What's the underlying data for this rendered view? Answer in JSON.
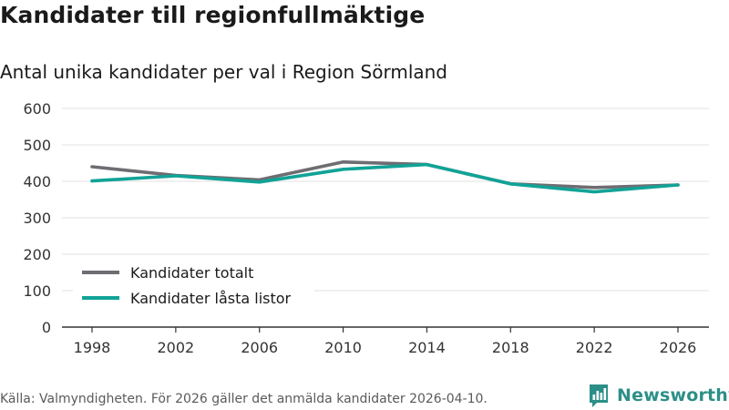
{
  "header": {
    "title": "Kandidater till regionfullmäktige",
    "subtitle": "Antal unika kandidater per val i Region Sörmland"
  },
  "chart_data": {
    "type": "line",
    "title": "Kandidater till regionfullmäktige",
    "subtitle": "Antal unika kandidater per val i Region Sörmland",
    "xlabel": "",
    "ylabel": "",
    "x": [
      "1998",
      "2002",
      "2006",
      "2010",
      "2014",
      "2018",
      "2022",
      "2026"
    ],
    "ylim": [
      0,
      600
    ],
    "yticks": [
      0,
      100,
      200,
      300,
      400,
      500,
      600
    ],
    "grid": true,
    "legend_position": "bottom-left",
    "series": [
      {
        "name": "Kandidater totalt",
        "color": "#6e6d72",
        "values": [
          440,
          416,
          404,
          453,
          446,
          393,
          383,
          390
        ]
      },
      {
        "name": "Kandidater låsta listor",
        "color": "#11a397",
        "values": [
          401,
          415,
          398,
          433,
          446,
          393,
          371,
          390
        ]
      }
    ]
  },
  "footer": {
    "source": "Källa: Valmyndigheten. För 2026 gäller det anmälda kandidater 2026-04-10.",
    "brand": "Newsworthy",
    "brand_icon": "newsworthy-logo-icon",
    "brand_color": "#2c8f87"
  }
}
